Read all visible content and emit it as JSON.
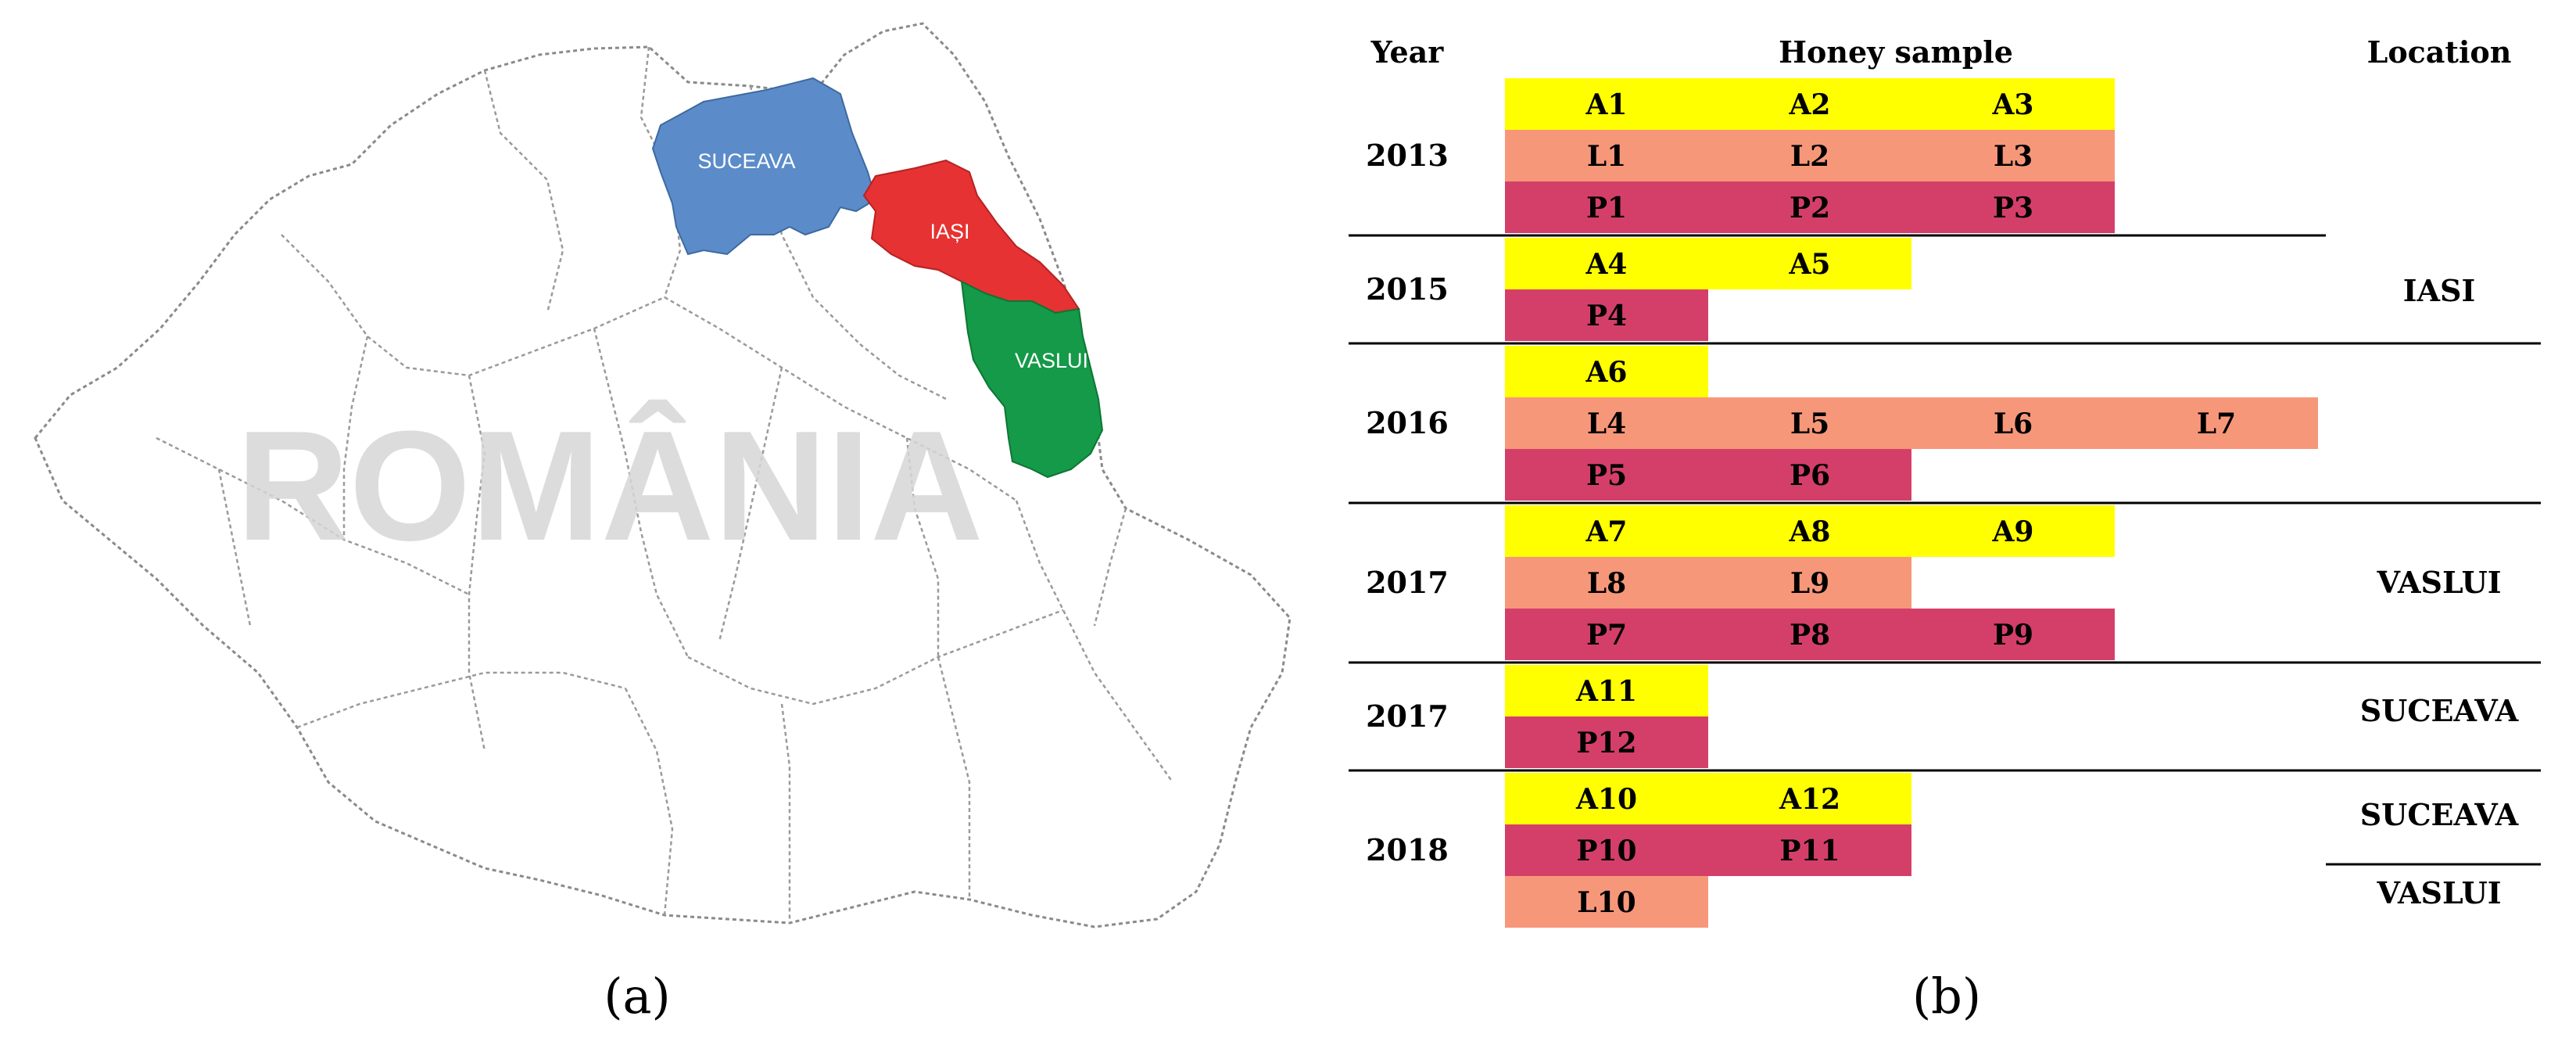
{
  "map": {
    "watermark": "ROMÂNIA",
    "regions": [
      {
        "label": "SUCEAVA",
        "color": "#5b8cc9"
      },
      {
        "label": "IAȘI",
        "color": "#e63232"
      },
      {
        "label": "VASLUI",
        "color": "#149a48"
      }
    ],
    "caption": "(a)"
  },
  "table": {
    "headers": {
      "year": "Year",
      "sample": "Honey sample",
      "location": "Location"
    },
    "colors": {
      "A": "#ffff00",
      "L": "#f7977a",
      "P": "#d43f6a"
    },
    "groups": [
      {
        "year": "2013",
        "rows": [
          {
            "type": "A",
            "samples": [
              "A1",
              "A2",
              "A3"
            ]
          },
          {
            "type": "L",
            "samples": [
              "L1",
              "L2",
              "L3"
            ]
          },
          {
            "type": "P",
            "samples": [
              "P1",
              "P2",
              "P3"
            ]
          }
        ]
      },
      {
        "year": "2015",
        "rows": [
          {
            "type": "A",
            "samples": [
              "A4",
              "A5"
            ]
          },
          {
            "type": "P",
            "samples": [
              "P4"
            ]
          }
        ]
      },
      {
        "year": "2016",
        "rows": [
          {
            "type": "A",
            "samples": [
              "A6"
            ]
          },
          {
            "type": "L",
            "samples": [
              "L4",
              "L5",
              "L6",
              "L7"
            ]
          },
          {
            "type": "P",
            "samples": [
              "P5",
              "P6"
            ]
          }
        ]
      },
      {
        "year": "2017",
        "rows": [
          {
            "type": "A",
            "samples": [
              "A7",
              "A8",
              "A9"
            ]
          },
          {
            "type": "L",
            "samples": [
              "L8",
              "L9"
            ]
          },
          {
            "type": "P",
            "samples": [
              "P7",
              "P8",
              "P9"
            ]
          }
        ]
      },
      {
        "year": "2017",
        "rows": [
          {
            "type": "A",
            "samples": [
              "A11"
            ]
          },
          {
            "type": "P",
            "samples": [
              "P12"
            ]
          }
        ]
      },
      {
        "year": "2018",
        "rows": [
          {
            "type": "A",
            "samples": [
              "A10",
              "A12"
            ]
          },
          {
            "type": "P",
            "samples": [
              "P10",
              "P11"
            ]
          },
          {
            "type": "L",
            "samples": [
              "L10"
            ]
          }
        ]
      }
    ],
    "locations": [
      "IASI",
      "VASLUI",
      "SUCEAVA",
      "SUCEAVA",
      "VASLUI"
    ],
    "caption": "(b)"
  }
}
